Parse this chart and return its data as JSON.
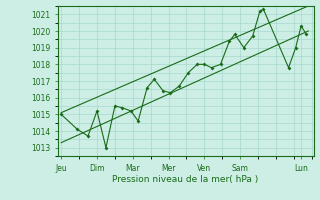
{
  "title": "",
  "xlabel": "Pression niveau de la mer( hPa )",
  "ylabel": "",
  "bg_color": "#cceee4",
  "grid_color": "#a8d8cc",
  "line_color": "#1a6b1a",
  "ylim": [
    1012.5,
    1021.5
  ],
  "xlim": [
    -0.1,
    7.05
  ],
  "day_labels": [
    "Jeu",
    "Dim",
    "Mar",
    "Mer",
    "Ven",
    "Sam",
    "Lun"
  ],
  "day_positions": [
    0,
    1,
    2,
    3,
    4,
    5,
    6.7
  ],
  "yticks": [
    1013,
    1014,
    1015,
    1016,
    1017,
    1018,
    1019,
    1020,
    1021
  ],
  "series1": [
    [
      0.0,
      1015.0
    ],
    [
      0.45,
      1014.1
    ],
    [
      0.75,
      1013.7
    ],
    [
      1.0,
      1015.2
    ],
    [
      1.25,
      1013.0
    ],
    [
      1.5,
      1015.5
    ],
    [
      1.7,
      1015.4
    ],
    [
      1.95,
      1015.2
    ],
    [
      2.15,
      1014.6
    ],
    [
      2.4,
      1016.6
    ],
    [
      2.6,
      1017.1
    ],
    [
      2.85,
      1016.4
    ],
    [
      3.05,
      1016.3
    ],
    [
      3.3,
      1016.7
    ],
    [
      3.55,
      1017.5
    ],
    [
      3.8,
      1018.0
    ],
    [
      4.0,
      1018.0
    ],
    [
      4.2,
      1017.8
    ],
    [
      4.45,
      1018.0
    ],
    [
      4.7,
      1019.4
    ],
    [
      4.85,
      1019.8
    ],
    [
      5.1,
      1019.0
    ],
    [
      5.35,
      1019.7
    ],
    [
      5.55,
      1021.2
    ],
    [
      5.65,
      1021.3
    ],
    [
      6.35,
      1017.8
    ],
    [
      6.55,
      1019.0
    ],
    [
      6.7,
      1020.3
    ],
    [
      6.85,
      1019.8
    ]
  ],
  "trend_line": [
    [
      0.0,
      1013.3
    ],
    [
      6.9,
      1020.0
    ]
  ],
  "trend_line2": [
    [
      0.0,
      1015.1
    ],
    [
      6.9,
      1021.5
    ]
  ]
}
